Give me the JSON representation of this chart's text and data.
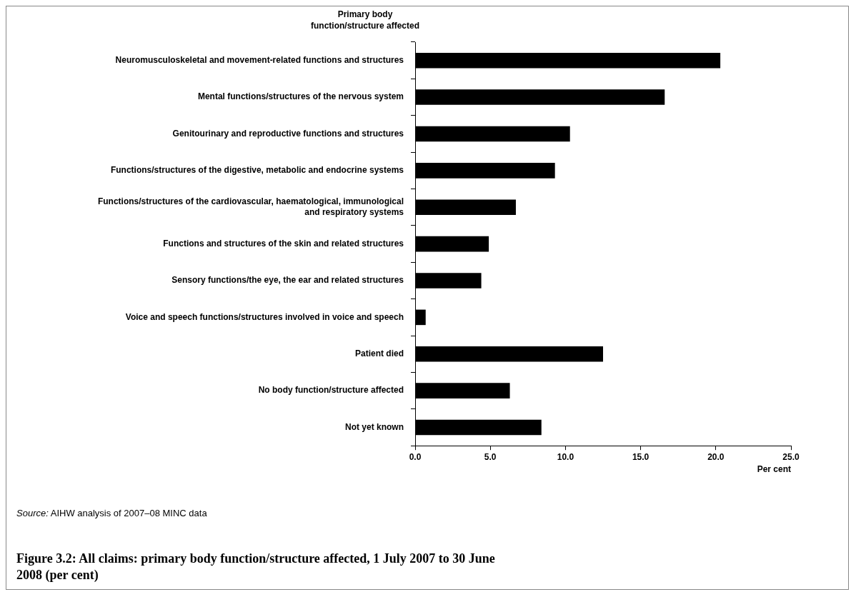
{
  "chart_data": {
    "type": "bar",
    "orientation": "horizontal",
    "ylabel": "Primary body function/structure affected",
    "xlabel": "Per cent",
    "title": "Figure 3.2: All claims: primary body function/structure affected, 1 July 2007 to 30 June 2008 (per cent)",
    "annotations": [
      "Source: AIHW analysis of 2007–08 MINC data"
    ],
    "categories": [
      "Neuromusculoskeletal and movement-related functions and structures",
      "Mental functions/structures of the nervous system",
      "Genitourinary and reproductive functions and structures",
      "Functions/structures of the digestive, metabolic and endocrine systems",
      "Functions/structures of the cardiovascular, haematological, immunological and respiratory systems",
      "Functions and structures of the skin and related structures",
      "Sensory functions/the eye, the ear and related structures",
      "Voice and speech functions/structures involved in voice and speech",
      "Patient died",
      "No body function/structure affected",
      "Not yet known"
    ],
    "values": [
      20.3,
      16.6,
      10.3,
      9.3,
      6.7,
      4.9,
      4.4,
      0.7,
      12.5,
      6.3,
      8.4
    ],
    "color": "#000000",
    "xlim": [
      0,
      25
    ],
    "xticks": [
      {
        "value": 0,
        "label": "0.0"
      },
      {
        "value": 5,
        "label": "5.0"
      },
      {
        "value": 10,
        "label": "10.0"
      },
      {
        "value": 15,
        "label": "15.0"
      },
      {
        "value": 20,
        "label": "20.0"
      },
      {
        "value": 25,
        "label": "25.0"
      }
    ],
    "grid": false,
    "legend": false
  }
}
